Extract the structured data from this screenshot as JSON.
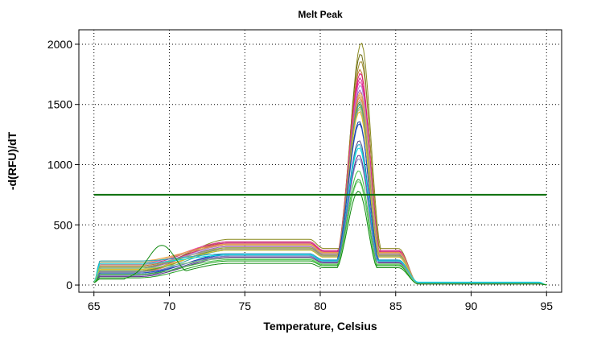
{
  "chart_data": {
    "type": "line",
    "title": "Melt Peak",
    "xlabel": "Temperature, Celsius",
    "ylabel": "-d(RFU)/dT",
    "xlim": [
      64,
      96
    ],
    "ylim": [
      -60,
      2120
    ],
    "xticks": [
      65,
      70,
      75,
      80,
      85,
      90,
      95
    ],
    "yticks": [
      0,
      500,
      1000,
      1500,
      2000
    ],
    "grid": true,
    "threshold": {
      "value": 750,
      "x": [
        65,
        95
      ],
      "color": "#0a6e0a"
    },
    "series": [
      {
        "color": "#8a8a1e",
        "peak": 2010,
        "base": 110,
        "plateau": 380,
        "midshift": 0.95,
        "tail": 10
      },
      {
        "color": "#6b6b12",
        "peak": 1920,
        "base": 140,
        "plateau": 360,
        "midshift": 0.9,
        "tail": 12
      },
      {
        "color": "#a08a2a",
        "peak": 1860,
        "base": 120,
        "plateau": 350,
        "midshift": 0.92,
        "tail": 14
      },
      {
        "color": "#c07028",
        "peak": 1790,
        "base": 160,
        "plateau": 330,
        "midshift": 0.85,
        "tail": 10
      },
      {
        "color": "#e0107a",
        "peak": 1760,
        "base": 150,
        "plateau": 340,
        "midshift": 0.88,
        "tail": 12
      },
      {
        "color": "#d21e8c",
        "peak": 1720,
        "base": 170,
        "plateau": 350,
        "midshift": 0.86,
        "tail": 8
      },
      {
        "color": "#f03aa0",
        "peak": 1690,
        "base": 180,
        "plateau": 360,
        "midshift": 0.85,
        "tail": 10
      },
      {
        "color": "#b08acd",
        "peak": 1660,
        "base": 150,
        "plateau": 330,
        "midshift": 0.87,
        "tail": 14
      },
      {
        "color": "#9a5ac8",
        "peak": 1620,
        "base": 140,
        "plateau": 320,
        "midshift": 0.84,
        "tail": 12
      },
      {
        "color": "#e8a040",
        "peak": 1600,
        "base": 200,
        "plateau": 340,
        "midshift": 0.86,
        "tail": 10
      },
      {
        "color": "#d4b060",
        "peak": 1580,
        "base": 190,
        "plateau": 330,
        "midshift": 0.85,
        "tail": 16
      },
      {
        "color": "#e87830",
        "peak": 1560,
        "base": 110,
        "plateau": 310,
        "midshift": 0.83,
        "tail": 10
      },
      {
        "color": "#c8a0a0",
        "peak": 1540,
        "base": 130,
        "plateau": 300,
        "midshift": 0.84,
        "tail": 12
      },
      {
        "color": "#5a9a3a",
        "peak": 1520,
        "base": 120,
        "plateau": 300,
        "midshift": 0.82,
        "tail": 10
      },
      {
        "color": "#3aa0a0",
        "peak": 1500,
        "base": 100,
        "plateau": 290,
        "midshift": 0.82,
        "tail": 14
      },
      {
        "color": "#8ab43a",
        "peak": 1480,
        "base": 150,
        "plateau": 310,
        "midshift": 0.83,
        "tail": 12
      },
      {
        "color": "#a0a0a0",
        "peak": 1460,
        "base": 170,
        "plateau": 300,
        "midshift": 0.81,
        "tail": 10
      },
      {
        "color": "#e0c020",
        "peak": 1440,
        "base": 130,
        "plateau": 290,
        "midshift": 0.8,
        "tail": 12
      },
      {
        "color": "#1a3aa0",
        "peak": 1360,
        "base": 90,
        "plateau": 260,
        "midshift": 0.78,
        "tail": 10
      },
      {
        "color": "#2050c0",
        "peak": 1340,
        "base": 100,
        "plateau": 250,
        "midshift": 0.79,
        "tail": 12
      },
      {
        "color": "#4a4a8a",
        "peak": 1200,
        "base": 80,
        "plateau": 240,
        "midshift": 0.78,
        "tail": 10
      },
      {
        "color": "#20a8c8",
        "peak": 1170,
        "base": 200,
        "plateau": 260,
        "midshift": 0.77,
        "tail": 20
      },
      {
        "color": "#00e0e0",
        "peak": 1140,
        "base": 180,
        "plateau": 250,
        "midshift": 0.77,
        "tail": 24
      },
      {
        "color": "#5a2a8a",
        "peak": 1080,
        "base": 70,
        "plateau": 230,
        "midshift": 0.76,
        "tail": 10
      },
      {
        "color": "#8080c0",
        "peak": 1050,
        "base": 110,
        "plateau": 240,
        "midshift": 0.76,
        "tail": 14
      },
      {
        "color": "#40c040",
        "peak": 950,
        "base": 90,
        "plateau": 210,
        "midshift": 0.74,
        "tail": 10
      },
      {
        "color": "#20a020",
        "peak": 880,
        "base": 60,
        "plateau": 200,
        "midshift": 0.73,
        "tail": 10
      },
      {
        "color": "#7ad07a",
        "peak": 860,
        "base": 140,
        "plateau": 220,
        "midshift": 0.73,
        "tail": 12
      },
      {
        "color": "#108a10",
        "peak": 780,
        "base": 50,
        "plateau": 180,
        "midshift": 0.72,
        "tail": 8,
        "hump": 330
      }
    ]
  }
}
